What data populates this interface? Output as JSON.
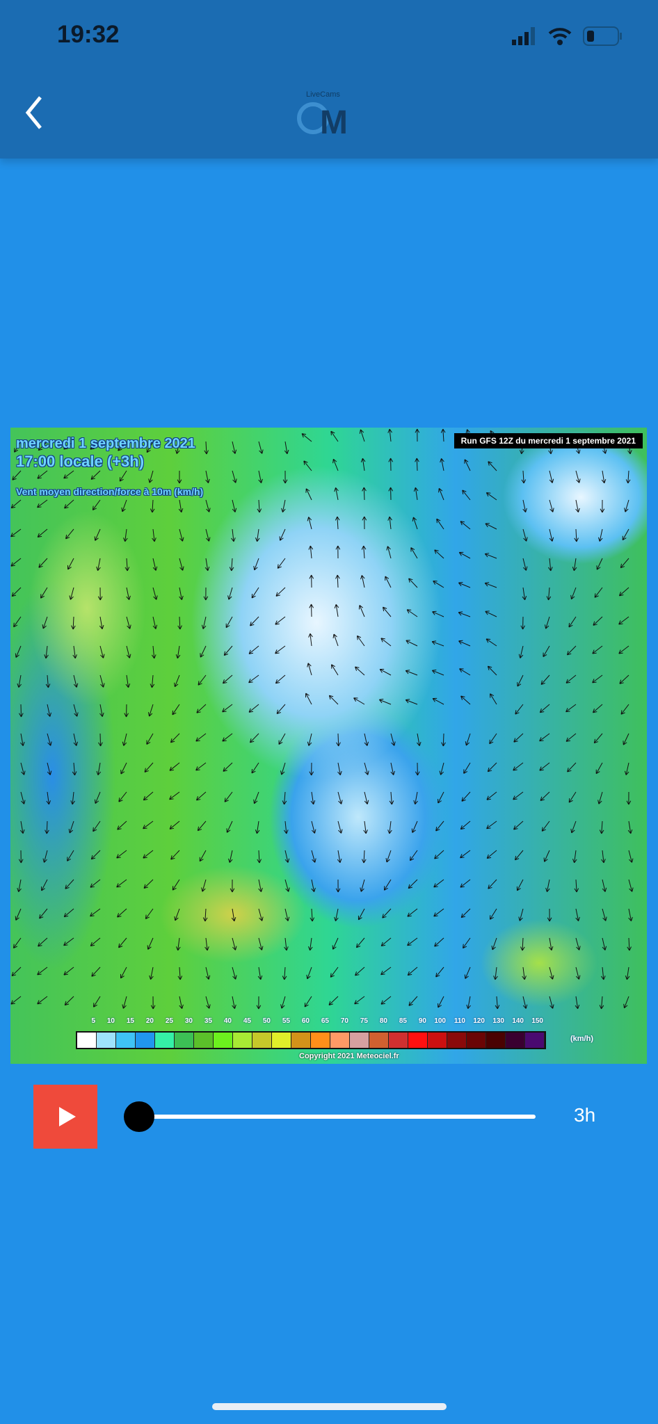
{
  "status_bar": {
    "time": "19:32"
  },
  "header": {
    "logo_text": "LiveCams",
    "logo_letter": "M"
  },
  "map": {
    "date": "mercredi 1 septembre 2021",
    "time": "17:00 locale (+3h)",
    "description": "Vent moyen direction/force à 10m (km/h)",
    "run": "Run GFS 12Z du mercredi 1 septembre 2021",
    "legend_ticks": [
      "5",
      "10",
      "15",
      "20",
      "25",
      "30",
      "35",
      "40",
      "45",
      "50",
      "55",
      "60",
      "65",
      "70",
      "75",
      "80",
      "85",
      "90",
      "100",
      "110",
      "120",
      "130",
      "140",
      "150"
    ],
    "legend_colors": [
      "#ffffff",
      "#9ee2fb",
      "#3fc3f5",
      "#2196ee",
      "#35f0a6",
      "#3cbf55",
      "#5bbf2a",
      "#6cf01e",
      "#a8ea34",
      "#c6c82a",
      "#e0ee2a",
      "#d3921a",
      "#ff8f1a",
      "#ff9a66",
      "#d6a0a0",
      "#d06030",
      "#d03030",
      "#ff1010",
      "#cc1010",
      "#8a0a0a",
      "#6a0505",
      "#4a0202",
      "#3a0030",
      "#4a0a70"
    ],
    "unit": "(km/h)",
    "copyright": "Copyright 2021 Meteociel.fr"
  },
  "player": {
    "step_label": "3h",
    "progress": 0
  }
}
